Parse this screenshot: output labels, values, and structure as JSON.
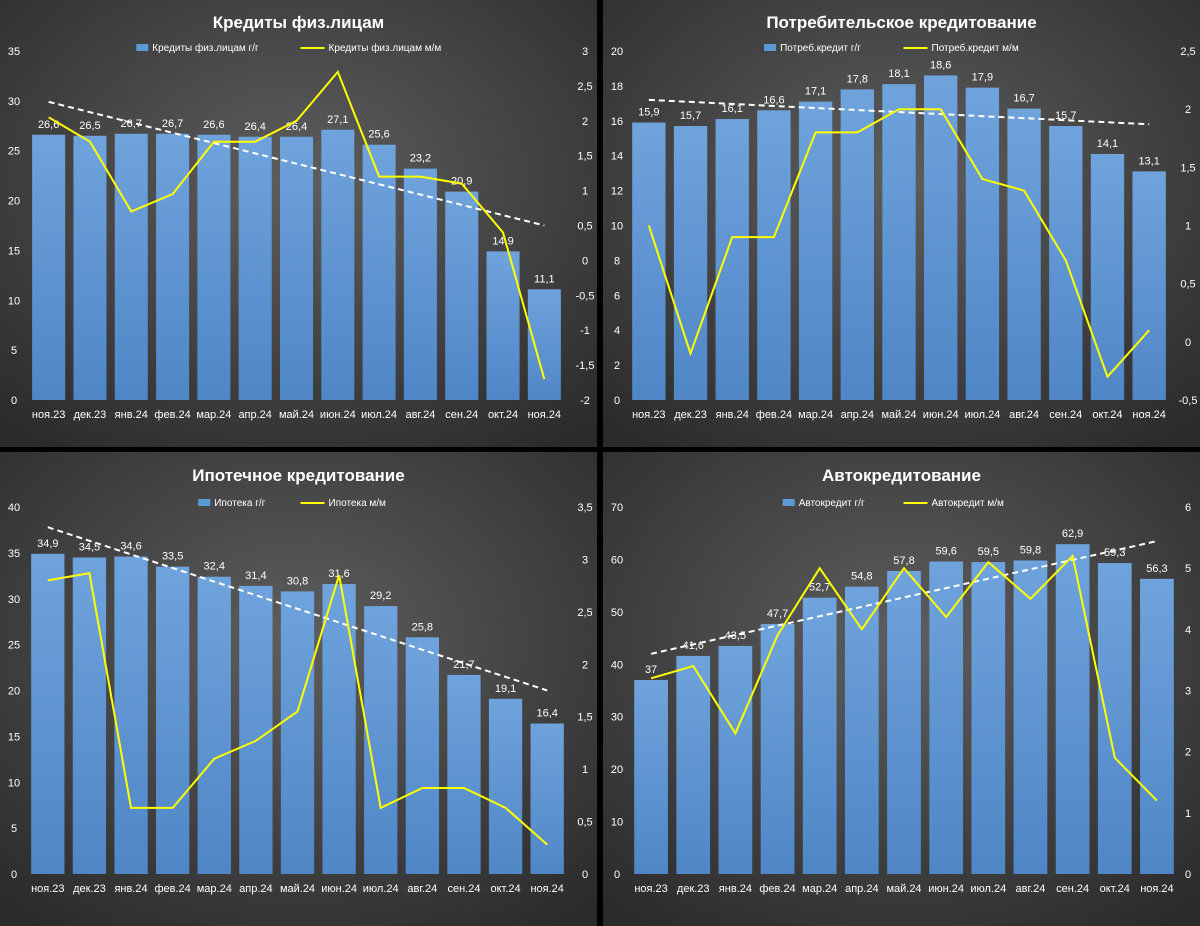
{
  "chart_data": [
    {
      "type": "bar",
      "title": "Кредиты физ.лицам",
      "categories": [
        "ноя.23",
        "дек.23",
        "янв.24",
        "фев.24",
        "мар.24",
        "апр.24",
        "май.24",
        "июн.24",
        "июл.24",
        "авг.24",
        "сен.24",
        "окт.24",
        "ноя.24"
      ],
      "series": [
        {
          "name": "Кредиты физ.лицам г/г",
          "type": "bar",
          "axis": "left",
          "values": [
            26.6,
            26.5,
            26.7,
            26.7,
            26.6,
            26.4,
            26.4,
            27.1,
            25.6,
            23.2,
            20.9,
            14.9,
            11.1
          ],
          "labels": [
            "26,6",
            "26,5",
            "26,7",
            "26,7",
            "26,6",
            "26,4",
            "26,4",
            "27,1",
            "25,6",
            "23,2",
            "20,9",
            "14,9",
            "11,1"
          ]
        },
        {
          "name": "Кредиты физ.лицам м/м",
          "type": "line",
          "axis": "right",
          "values": [
            2.05,
            1.7,
            0.7,
            0.95,
            1.7,
            1.7,
            2.0,
            2.7,
            1.2,
            1.2,
            1.1,
            0.4,
            -1.7
          ]
        }
      ],
      "trend": {
        "from": 29.9,
        "to": 17.5
      },
      "ylim": [
        0,
        35
      ],
      "yticks": [
        0,
        5,
        10,
        15,
        20,
        25,
        30,
        35
      ],
      "y2lim": [
        -2,
        3
      ],
      "y2ticks": [
        -2,
        -1.5,
        -1,
        -0.5,
        0,
        0.5,
        1,
        1.5,
        2,
        2.5,
        3
      ],
      "y2ticklabels": [
        "-2",
        "-1,5",
        "-1",
        "-0,5",
        "0",
        "0,5",
        "1",
        "1,5",
        "2",
        "2,5",
        "3"
      ],
      "legend": "top"
    },
    {
      "type": "bar",
      "title": "Потребительское кредитование",
      "categories": [
        "ноя.23",
        "дек.23",
        "янв.24",
        "фев.24",
        "мар.24",
        "апр.24",
        "май.24",
        "июн.24",
        "июл.24",
        "авг.24",
        "сен.24",
        "окт.24",
        "ноя.24"
      ],
      "series": [
        {
          "name": "Потреб.кредит г/г",
          "type": "bar",
          "axis": "left",
          "values": [
            15.9,
            15.7,
            16.1,
            16.6,
            17.1,
            17.8,
            18.1,
            18.6,
            17.9,
            16.7,
            15.7,
            14.1,
            13.1
          ],
          "labels": [
            "15,9",
            "15,7",
            "16,1",
            "16,6",
            "17,1",
            "17,8",
            "18,1",
            "18,6",
            "17,9",
            "16,7",
            "15,7",
            "14,1",
            "13,1"
          ]
        },
        {
          "name": "Потреб.кредит м/м",
          "type": "line",
          "axis": "right",
          "values": [
            1.0,
            -0.1,
            0.9,
            0.9,
            1.8,
            1.8,
            2.0,
            2.0,
            1.4,
            1.3,
            0.7,
            -0.3,
            0.1
          ]
        }
      ],
      "trend": {
        "from": 17.2,
        "to": 15.8
      },
      "ylim": [
        0,
        20
      ],
      "yticks": [
        0,
        2,
        4,
        6,
        8,
        10,
        12,
        14,
        16,
        18,
        20
      ],
      "y2lim": [
        -0.5,
        2.5
      ],
      "y2ticks": [
        -0.5,
        0,
        0.5,
        1,
        1.5,
        2,
        2.5
      ],
      "y2ticklabels": [
        "-0,5",
        "0",
        "0,5",
        "1",
        "1,5",
        "2",
        "2,5"
      ],
      "legend": "top"
    },
    {
      "type": "bar",
      "title": "Ипотечное кредитование",
      "categories": [
        "ноя.23",
        "дек.23",
        "янв.24",
        "фев.24",
        "мар.24",
        "апр.24",
        "май.24",
        "июн.24",
        "июл.24",
        "авг.24",
        "сен.24",
        "окт.24",
        "ноя.24"
      ],
      "series": [
        {
          "name": "Ипотека г/г",
          "type": "bar",
          "axis": "left",
          "values": [
            34.9,
            34.5,
            34.6,
            33.5,
            32.4,
            31.4,
            30.8,
            31.6,
            29.2,
            25.8,
            21.7,
            19.1,
            16.4
          ],
          "labels": [
            "34,9",
            "34,5",
            "34,6",
            "33,5",
            "32,4",
            "31,4",
            "30,8",
            "31,6",
            "29,2",
            "25,8",
            "21,7",
            "19,1",
            "16,4"
          ]
        },
        {
          "name": "Ипотека м/м",
          "type": "line",
          "axis": "right",
          "values": [
            2.8,
            2.87,
            0.63,
            0.63,
            1.1,
            1.27,
            1.55,
            2.85,
            0.63,
            0.82,
            0.82,
            0.63,
            0.28
          ]
        }
      ],
      "trend": {
        "from": 37.8,
        "to": 20.0
      },
      "ylim": [
        0,
        40
      ],
      "yticks": [
        0,
        5,
        10,
        15,
        20,
        25,
        30,
        35,
        40
      ],
      "y2lim": [
        0,
        3.5
      ],
      "y2ticks": [
        0,
        0.5,
        1,
        1.5,
        2,
        2.5,
        3,
        3.5
      ],
      "y2ticklabels": [
        "0",
        "0,5",
        "1",
        "1,5",
        "2",
        "2,5",
        "3",
        "3,5"
      ],
      "legend": "top"
    },
    {
      "type": "bar",
      "title": "Автокредитование",
      "categories": [
        "ноя.23",
        "дек.23",
        "янв.24",
        "фев.24",
        "мар.24",
        "апр.24",
        "май.24",
        "июн.24",
        "июл.24",
        "авг.24",
        "сен.24",
        "окт.24",
        "ноя.24"
      ],
      "series": [
        {
          "name": "Автокредит г/г",
          "type": "bar",
          "axis": "left",
          "values": [
            37,
            41.6,
            43.5,
            47.7,
            52.7,
            54.8,
            57.8,
            59.6,
            59.5,
            59.8,
            62.9,
            59.3,
            56.3
          ],
          "labels": [
            "37",
            "41,6",
            "43,5",
            "47,7",
            "52,7",
            "54,8",
            "57,8",
            "59,6",
            "59,5",
            "59,8",
            "62,9",
            "59,3",
            "56,3"
          ]
        },
        {
          "name": "Автокредит м/м",
          "type": "line",
          "axis": "right",
          "values": [
            3.2,
            3.4,
            2.3,
            3.9,
            5.0,
            4.0,
            5.0,
            4.2,
            5.1,
            4.5,
            5.2,
            1.9,
            1.2
          ]
        }
      ],
      "trend": {
        "from": 42.0,
        "to": 63.5
      },
      "ylim": [
        0,
        70
      ],
      "yticks": [
        0,
        10,
        20,
        30,
        40,
        50,
        60,
        70
      ],
      "y2lim": [
        0,
        6
      ],
      "y2ticks": [
        0,
        1,
        2,
        3,
        4,
        5,
        6
      ],
      "y2ticklabels": [
        "0",
        "1",
        "2",
        "3",
        "4",
        "5",
        "6"
      ],
      "legend": "top"
    }
  ]
}
